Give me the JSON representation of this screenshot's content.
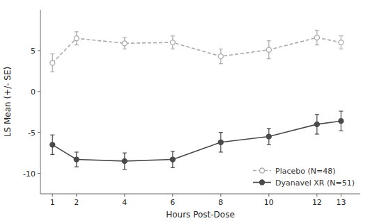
{
  "chart_data": {
    "type": "line",
    "x": [
      1,
      2,
      4,
      6,
      8,
      10,
      12,
      13
    ],
    "xlabel": "Hours Post-Dose",
    "ylabel": "LS Mean (+/- SE)",
    "xlim": [
      0.5,
      13.8
    ],
    "ylim": [
      -12.5,
      10
    ],
    "xticks": [
      1,
      2,
      4,
      6,
      8,
      10,
      12,
      13
    ],
    "yticks": [
      -10,
      -5,
      0,
      5
    ],
    "grid": false,
    "legend": "lower right",
    "series": [
      {
        "name": "Placebo (N=48)",
        "color": "#aaaaaa",
        "marker": "open-circle",
        "line_style": "dashed",
        "values": [
          3.5,
          6.5,
          5.9,
          6.0,
          4.3,
          5.1,
          6.6,
          6.0
        ],
        "errors": [
          1.1,
          0.8,
          0.7,
          0.8,
          0.9,
          1.1,
          0.9,
          0.8
        ]
      },
      {
        "name": "Dyanavel XR (N=51)",
        "color": "#4a4a4a",
        "marker": "circle",
        "line_style": "solid",
        "values": [
          -6.5,
          -8.3,
          -8.5,
          -8.3,
          -6.2,
          -5.5,
          -4.0,
          -3.6
        ],
        "errors": [
          1.2,
          0.9,
          1.0,
          1.0,
          1.2,
          1.0,
          1.2,
          1.2
        ]
      }
    ]
  }
}
